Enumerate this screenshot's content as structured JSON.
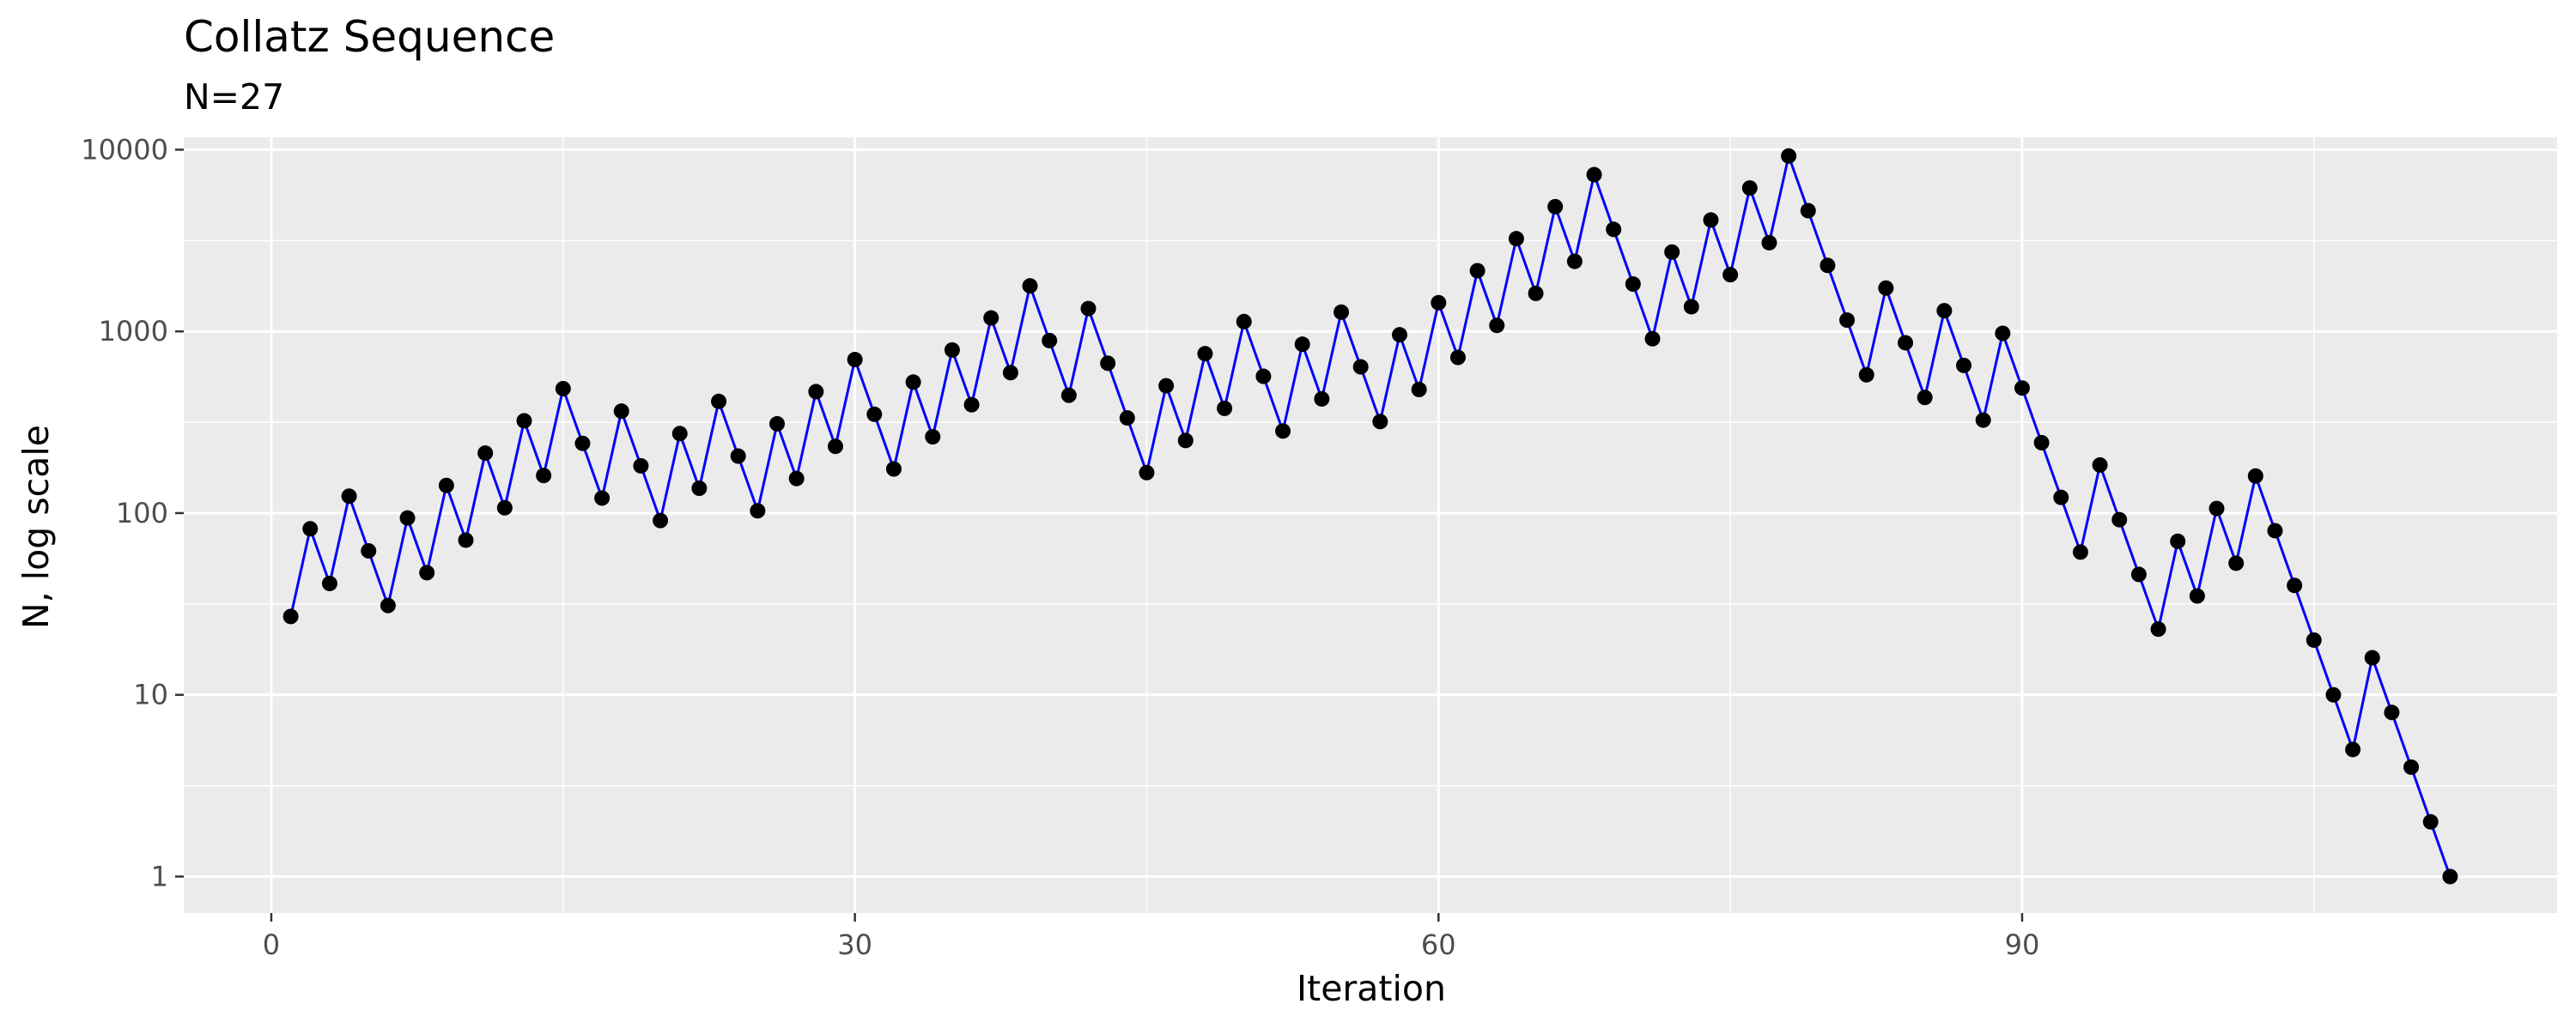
{
  "chart_data": {
    "type": "line",
    "title": "Collatz Sequence",
    "subtitle": "N=27",
    "xlabel": "Iteration",
    "ylabel": "N, log scale",
    "y_scale": "log10",
    "xlim": [
      -4.5,
      117.5
    ],
    "ylim": [
      0.63,
      11700
    ],
    "x_ticks": [
      0,
      30,
      60,
      90
    ],
    "x_tick_labels": [
      "0",
      "30",
      "60",
      "90"
    ],
    "y_ticks": [
      1,
      10,
      100,
      1000,
      10000
    ],
    "y_tick_labels": [
      "1",
      "10",
      "100",
      "1000",
      "10000"
    ],
    "grid": true,
    "legend": "none",
    "colors": {
      "line": "#0000ff",
      "points": "#000000",
      "panel": "#ebebeb",
      "grid": "#ffffff"
    },
    "series": [
      {
        "x": [
          1,
          2,
          3,
          4,
          5,
          6,
          7,
          8,
          9,
          10,
          11,
          12,
          13,
          14,
          15,
          16,
          17,
          18,
          19,
          20,
          21,
          22,
          23,
          24,
          25,
          26,
          27,
          28,
          29,
          30,
          31,
          32,
          33,
          34,
          35,
          36,
          37,
          38,
          39,
          40,
          41,
          42,
          43,
          44,
          45,
          46,
          47,
          48,
          49,
          50,
          51,
          52,
          53,
          54,
          55,
          56,
          57,
          58,
          59,
          60,
          61,
          62,
          63,
          64,
          65,
          66,
          67,
          68,
          69,
          70,
          71,
          72,
          73,
          74,
          75,
          76,
          77,
          78,
          79,
          80,
          81,
          82,
          83,
          84,
          85,
          86,
          87,
          88,
          89,
          90,
          91,
          92,
          93,
          94,
          95,
          96,
          97,
          98,
          99,
          100,
          101,
          102,
          103,
          104,
          105,
          106,
          107,
          108,
          109,
          110,
          111,
          112
        ],
        "y": [
          27,
          82,
          41,
          124,
          62,
          31,
          94,
          47,
          142,
          71,
          214,
          107,
          322,
          161,
          484,
          242,
          121,
          364,
          182,
          91,
          274,
          137,
          412,
          206,
          103,
          310,
          155,
          466,
          233,
          700,
          350,
          175,
          526,
          263,
          790,
          395,
          1186,
          593,
          1780,
          890,
          445,
          1336,
          668,
          334,
          167,
          502,
          251,
          754,
          377,
          1132,
          566,
          283,
          850,
          425,
          1276,
          638,
          319,
          958,
          479,
          1438,
          719,
          2158,
          1079,
          3238,
          1619,
          4858,
          2429,
          7288,
          3644,
          1822,
          911,
          2734,
          1367,
          4102,
          2051,
          6154,
          3077,
          9232,
          4616,
          2308,
          1154,
          577,
          1732,
          866,
          433,
          1300,
          650,
          325,
          976,
          488,
          244,
          122,
          61,
          184,
          92,
          46,
          23,
          70,
          35,
          106,
          53,
          160,
          80,
          40,
          20,
          10,
          5,
          16,
          8,
          4,
          2,
          1
        ]
      }
    ]
  }
}
